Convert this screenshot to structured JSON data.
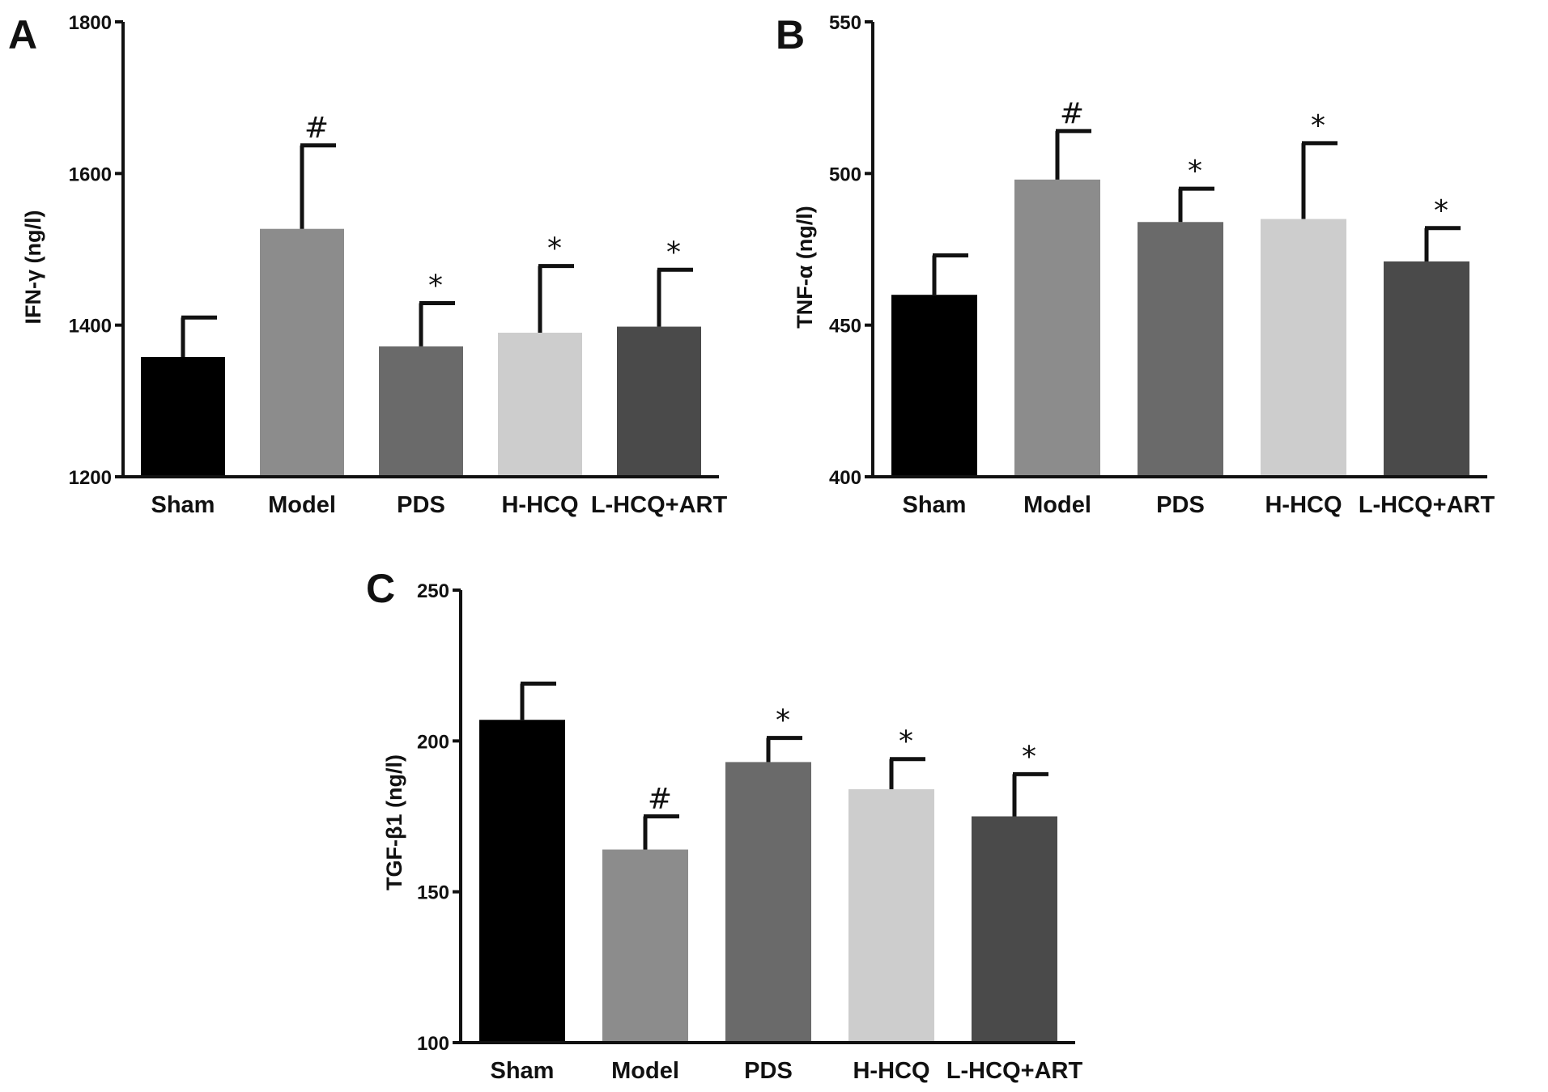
{
  "figure": {
    "colors": {
      "Sham": "#000000",
      "Model": "#8c8c8c",
      "PDS": "#6a6a6a",
      "H-HCQ": "#cdcdcd",
      "L-HCQ+ART": "#4a4a4a"
    }
  },
  "chart_data": [
    {
      "panel": "A",
      "type": "bar",
      "categories": [
        "Sham",
        "Model",
        "PDS",
        "H-HCQ",
        "L-HCQ+ART"
      ],
      "values": [
        1358,
        1527,
        1372,
        1390,
        1398
      ],
      "errors": [
        52,
        110,
        57,
        88,
        75
      ],
      "annotations": [
        "",
        "#",
        "*",
        "*",
        "*"
      ],
      "ylabel": "IFN-γ (ng/l)",
      "ylim": [
        1200,
        1800
      ],
      "yticks": [
        "1200",
        "1400",
        "1600",
        "1800"
      ],
      "grid": false,
      "legend": "none"
    },
    {
      "panel": "B",
      "type": "bar",
      "categories": [
        "Sham",
        "Model",
        "PDS",
        "H-HCQ",
        "L-HCQ+ART"
      ],
      "values": [
        460,
        498,
        484,
        485,
        471
      ],
      "errors": [
        13,
        16,
        11,
        25,
        11
      ],
      "annotations": [
        "",
        "#",
        "*",
        "*",
        "*"
      ],
      "ylabel": "TNF-α (ng/l)",
      "ylim": [
        400,
        550
      ],
      "yticks": [
        "400",
        "450",
        "500",
        "550"
      ],
      "grid": false,
      "legend": "none"
    },
    {
      "panel": "C",
      "type": "bar",
      "categories": [
        "Sham",
        "Model",
        "PDS",
        "H-HCQ",
        "L-HCQ+ART"
      ],
      "values": [
        207,
        164,
        193,
        184,
        175
      ],
      "errors": [
        12,
        11,
        8,
        10,
        14
      ],
      "annotations": [
        "",
        "#",
        "*",
        "*",
        "*"
      ],
      "ylabel": "TGF-β1 (ng/l)",
      "ylim": [
        100,
        250
      ],
      "yticks": [
        "100",
        "150",
        "200",
        "250"
      ],
      "grid": false,
      "legend": "none"
    }
  ]
}
